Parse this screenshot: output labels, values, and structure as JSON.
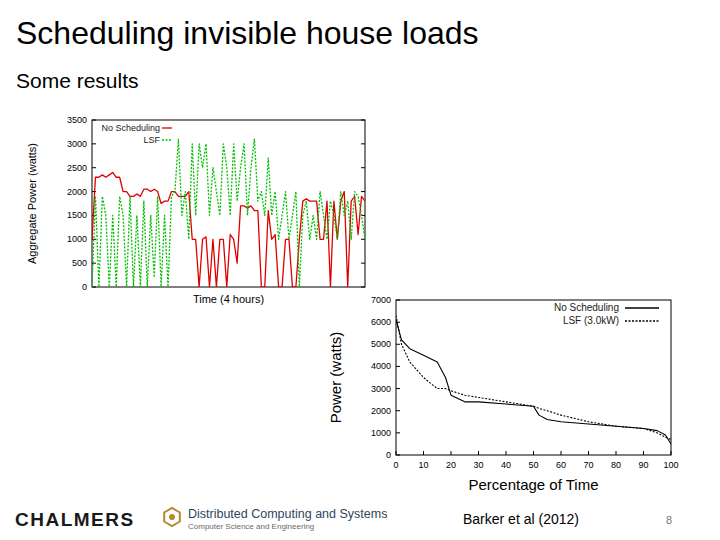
{
  "slide": {
    "title": "Scheduling invisible house loads",
    "subtitle": "Some results",
    "logo": "CHALMERS",
    "department": "Distributed Computing and Systems",
    "division": "Computer Science and Engineering",
    "citation": "Barker et al (2012)",
    "page": 8
  },
  "chart_data": [
    {
      "type": "line",
      "xlabel": "Time (4 hours)",
      "ylabel": "Aggregate Power (watts)",
      "ylim": [
        0,
        3500
      ],
      "yticks": [
        0,
        500,
        1000,
        1500,
        2000,
        2500,
        3000,
        3500
      ],
      "tick_labels": "y",
      "legend": "top-left",
      "series": [
        {
          "name": "No Scheduling",
          "color": "#e00000",
          "line_style": "solid",
          "values": [
            1000,
            2300,
            2300,
            2350,
            2300,
            2350,
            2400,
            2300,
            2300,
            2000,
            2000,
            1900,
            1900,
            1950,
            1900,
            2050,
            2050,
            2000,
            2050,
            2000,
            1750,
            1800,
            1800,
            2000,
            2000,
            1900,
            1900,
            1900,
            2000,
            1000,
            1000,
            0,
            1000,
            1050,
            0,
            1000,
            0,
            1000,
            1000,
            0,
            1100,
            1000,
            500,
            1700,
            1700,
            1650,
            1700,
            1600,
            1600,
            0,
            0,
            1600,
            1000,
            1100,
            0,
            0,
            1000,
            1000,
            0,
            0,
            1000,
            1800,
            1850,
            1800,
            1800,
            1800,
            1000,
            1000,
            1800,
            0,
            1800,
            1000,
            1800,
            2000,
            0,
            1800,
            1900,
            1100,
            1900,
            1800
          ]
        },
        {
          "name": "LSF",
          "color": "#00c000",
          "line_style": "dotted",
          "values": [
            0,
            1900,
            0,
            1900,
            1500,
            0,
            1500,
            0,
            1900,
            1500,
            0,
            1900,
            0,
            1500,
            0,
            1800,
            0,
            1500,
            200,
            1900,
            0,
            1500,
            0,
            1900,
            2000,
            3100,
            1500,
            2000,
            1000,
            3000,
            1500,
            3000,
            2500,
            3000,
            1500,
            2500,
            2000,
            1500,
            3000,
            2500,
            1500,
            3000,
            1800,
            2500,
            3000,
            1500,
            2500,
            3100,
            1800,
            2000,
            1500,
            2700,
            1500,
            2000,
            1000,
            1500,
            2000,
            1000,
            1500,
            2000,
            0,
            1500,
            1800,
            1000,
            1500,
            1000,
            2000,
            1500,
            1000,
            1800,
            1500,
            1000,
            2000,
            1500,
            1800,
            1000,
            2000,
            1900,
            1500,
            1000
          ]
        }
      ]
    },
    {
      "type": "line",
      "xlabel": "Percentage of Time",
      "ylabel": "Power (watts)",
      "xlim": [
        0,
        100
      ],
      "xticks": [
        0,
        10,
        20,
        30,
        40,
        50,
        60,
        70,
        80,
        90,
        100
      ],
      "ylim": [
        0,
        7000
      ],
      "yticks": [
        0,
        1000,
        2000,
        3000,
        4000,
        5000,
        6000,
        7000
      ],
      "legend": "top-right",
      "x": [
        0,
        2,
        5,
        10,
        15,
        18,
        20,
        25,
        30,
        40,
        50,
        52,
        55,
        60,
        70,
        80,
        90,
        95,
        98,
        100
      ],
      "series": [
        {
          "name": "No Scheduling",
          "color": "#000000",
          "line_style": "solid",
          "values": [
            6100,
            5200,
            4800,
            4500,
            4200,
            3500,
            2700,
            2400,
            2400,
            2300,
            2200,
            1800,
            1600,
            1500,
            1400,
            1300,
            1200,
            1100,
            900,
            500
          ]
        },
        {
          "name": "LSF (3.0kW)",
          "color": "#000000",
          "line_style": "dotted",
          "values": [
            6300,
            5000,
            4200,
            3500,
            3000,
            3000,
            2900,
            2700,
            2600,
            2400,
            2200,
            2100,
            2000,
            1800,
            1500,
            1300,
            1200,
            1000,
            800,
            700
          ]
        }
      ]
    }
  ]
}
